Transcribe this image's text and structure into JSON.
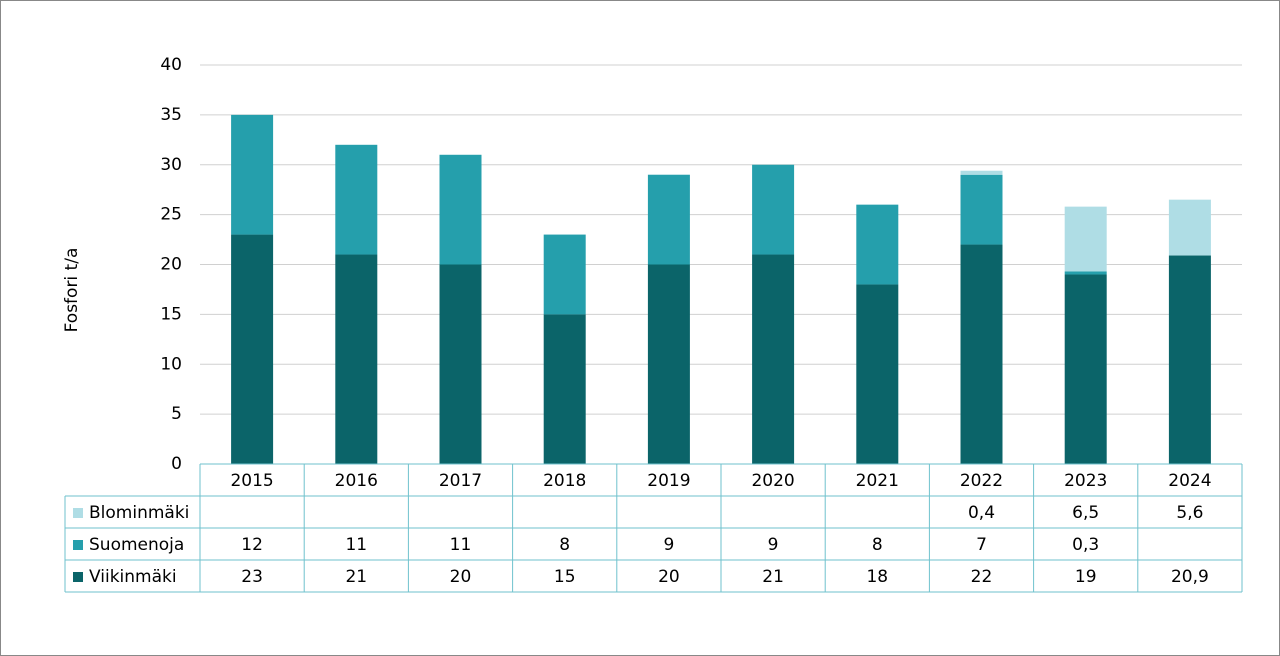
{
  "chart_data": {
    "type": "stacked-bar",
    "y_label": "Fosfori t/a",
    "categories": [
      "2015",
      "2016",
      "2017",
      "2018",
      "2019",
      "2020",
      "2021",
      "2022",
      "2023",
      "2024"
    ],
    "series": [
      {
        "name": "Viikinmäki",
        "color": "#0b6469",
        "values": [
          23,
          21,
          20,
          15,
          20,
          21,
          18,
          22,
          19,
          20.9
        ],
        "value_labels": [
          "23",
          "21",
          "20",
          "15",
          "20",
          "21",
          "18",
          "22",
          "19",
          "20,9"
        ]
      },
      {
        "name": "Suomenoja",
        "color": "#259fac",
        "values": [
          12,
          11,
          11,
          8,
          9,
          9,
          8,
          7,
          0.3,
          null
        ],
        "value_labels": [
          "12",
          "11",
          "11",
          "8",
          "9",
          "9",
          "8",
          "7",
          "0,3",
          null
        ]
      },
      {
        "name": "Blominmäki",
        "color": "#afdde5",
        "values": [
          null,
          null,
          null,
          null,
          null,
          null,
          null,
          0.4,
          6.5,
          5.6
        ],
        "value_labels": [
          null,
          null,
          null,
          null,
          null,
          null,
          null,
          "0,4",
          "6,5",
          "5,6"
        ]
      }
    ],
    "ylim": [
      0,
      40
    ],
    "yticks": [
      0,
      5,
      10,
      15,
      20,
      25,
      30,
      35,
      40
    ],
    "grid": true
  }
}
